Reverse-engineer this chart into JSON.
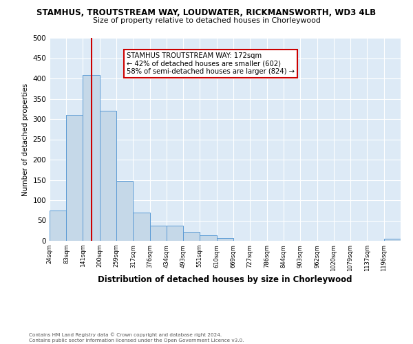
{
  "title": "STAMHUS, TROUTSTREAM WAY, LOUDWATER, RICKMANSWORTH, WD3 4LB",
  "subtitle": "Size of property relative to detached houses in Chorleywood",
  "xlabel": "Distribution of detached houses by size in Chorleywood",
  "ylabel": "Number of detached properties",
  "bar_color": "#c5d8e8",
  "bar_edge_color": "#5b9bd5",
  "bins": [
    24,
    83,
    141,
    200,
    259,
    317,
    376,
    434,
    493,
    551,
    610,
    669,
    727,
    786,
    844,
    903,
    962,
    1020,
    1079,
    1137,
    1196
  ],
  "bar_labels": [
    "24sqm",
    "83sqm",
    "141sqm",
    "200sqm",
    "259sqm",
    "317sqm",
    "376sqm",
    "434sqm",
    "493sqm",
    "551sqm",
    "610sqm",
    "669sqm",
    "727sqm",
    "786sqm",
    "844sqm",
    "903sqm",
    "962sqm",
    "1020sqm",
    "1079sqm",
    "1137sqm",
    "1196sqm"
  ],
  "heights": [
    75,
    311,
    408,
    320,
    148,
    70,
    37,
    37,
    22,
    14,
    6,
    0,
    0,
    0,
    0,
    0,
    0,
    0,
    0,
    0,
    5
  ],
  "vline_x": 172,
  "vline_color": "#cc0000",
  "annotation_title": "STAMHUS TROUTSTREAM WAY: 172sqm",
  "annotation_line1": "← 42% of detached houses are smaller (602)",
  "annotation_line2": "58% of semi-detached houses are larger (824) →",
  "annotation_box_color": "#ffffff",
  "annotation_border_color": "#cc0000",
  "ylim": [
    0,
    500
  ],
  "yticks": [
    0,
    50,
    100,
    150,
    200,
    250,
    300,
    350,
    400,
    450,
    500
  ],
  "bg_color": "#ddeaf6",
  "footer1": "Contains HM Land Registry data © Crown copyright and database right 2024.",
  "footer2": "Contains public sector information licensed under the Open Government Licence v3.0."
}
